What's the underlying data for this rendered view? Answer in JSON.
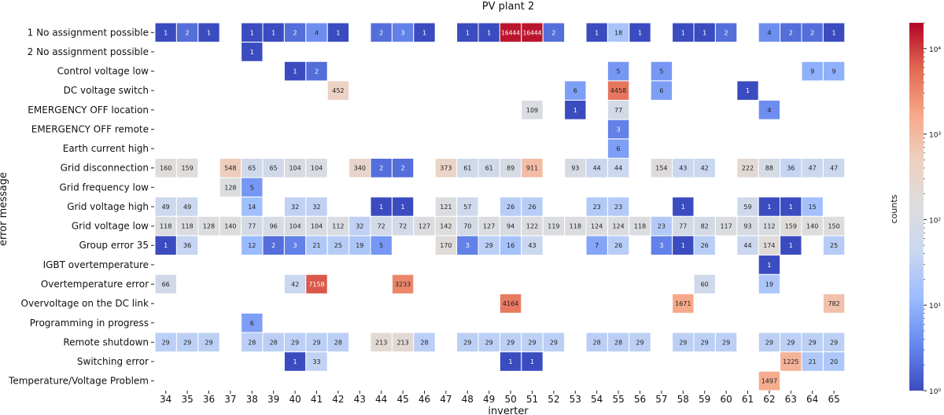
{
  "chart_data": {
    "type": "heatmap",
    "title": "PV plant 2",
    "xlabel": "inverter",
    "ylabel": "error message",
    "colorbar_label": "counts",
    "colorbar_scale": "log",
    "colorbar_range": [
      1,
      20000
    ],
    "colorbar_ticks": [
      {
        "value": 1,
        "label": "10⁰"
      },
      {
        "value": 10,
        "label": "10¹"
      },
      {
        "value": 100,
        "label": "10²"
      },
      {
        "value": 1000,
        "label": "10³"
      },
      {
        "value": 10000,
        "label": "10⁴"
      }
    ],
    "colormap": [
      "#3b4cc0",
      "#6788ee",
      "#9abbff",
      "#c9d7f0",
      "#dddddd",
      "#edd1c2",
      "#f7a889",
      "#e26952",
      "#b40426"
    ],
    "x": [
      "34",
      "35",
      "36",
      "37",
      "38",
      "39",
      "40",
      "41",
      "42",
      "43",
      "44",
      "45",
      "46",
      "47",
      "48",
      "49",
      "50",
      "51",
      "52",
      "53",
      "54",
      "55",
      "56",
      "57",
      "58",
      "59",
      "60",
      "61",
      "62",
      "63",
      "64",
      "65"
    ],
    "y": [
      "1 No assignment possible",
      "2 No assignment possible",
      "Control voltage low",
      "DC voltage switch",
      "EMERGENCY OFF location",
      "EMERGENCY OFF remote",
      "Earth current high",
      "Grid disconnection",
      "Grid frequency low",
      "Grid voltage high",
      "Grid voltage low",
      "Group error 35",
      "IGBT overtemperature",
      "Overtemperature error",
      "Overvoltage on the DC link",
      "Programming in progress",
      "Remote shutdown",
      "Switching error",
      "Temperature/Voltage Problem"
    ],
    "values": [
      [
        1,
        2,
        1,
        null,
        1,
        1,
        2,
        4,
        1,
        null,
        2,
        3,
        1,
        null,
        1,
        1,
        16444,
        16444,
        2,
        null,
        1,
        18,
        1,
        null,
        1,
        1,
        2,
        null,
        4,
        2,
        2,
        1
      ],
      [
        null,
        null,
        null,
        null,
        1,
        null,
        null,
        null,
        null,
        null,
        null,
        null,
        null,
        null,
        null,
        null,
        null,
        null,
        null,
        null,
        null,
        null,
        null,
        null,
        null,
        null,
        null,
        null,
        null,
        null,
        null,
        null
      ],
      [
        null,
        null,
        null,
        null,
        null,
        null,
        1,
        2,
        null,
        null,
        null,
        null,
        null,
        null,
        null,
        null,
        null,
        null,
        null,
        null,
        null,
        5,
        null,
        5,
        null,
        null,
        null,
        null,
        null,
        null,
        9,
        9
      ],
      [
        null,
        null,
        null,
        null,
        null,
        null,
        null,
        null,
        452,
        null,
        null,
        null,
        null,
        null,
        null,
        null,
        null,
        null,
        null,
        6,
        null,
        4458,
        null,
        6,
        null,
        null,
        null,
        1,
        null,
        null,
        null,
        null
      ],
      [
        null,
        null,
        null,
        null,
        null,
        null,
        null,
        null,
        null,
        null,
        null,
        null,
        null,
        null,
        null,
        null,
        null,
        109,
        null,
        1,
        null,
        77,
        null,
        null,
        null,
        null,
        null,
        null,
        4,
        null,
        null,
        null
      ],
      [
        null,
        null,
        null,
        null,
        null,
        null,
        null,
        null,
        null,
        null,
        null,
        null,
        null,
        null,
        null,
        null,
        null,
        null,
        null,
        null,
        null,
        3,
        null,
        null,
        null,
        null,
        null,
        null,
        null,
        null,
        null,
        null
      ],
      [
        null,
        null,
        null,
        null,
        null,
        null,
        null,
        null,
        null,
        null,
        null,
        null,
        null,
        null,
        null,
        null,
        null,
        null,
        null,
        null,
        null,
        6,
        null,
        null,
        null,
        null,
        null,
        null,
        null,
        null,
        null,
        null
      ],
      [
        160,
        159,
        null,
        548,
        65,
        65,
        104,
        104,
        null,
        340,
        2,
        2,
        null,
        373,
        61,
        61,
        89,
        911,
        null,
        93,
        44,
        44,
        null,
        154,
        43,
        42,
        null,
        222,
        88,
        36,
        47,
        47
      ],
      [
        null,
        null,
        null,
        128,
        5,
        null,
        null,
        null,
        null,
        null,
        null,
        null,
        null,
        null,
        null,
        null,
        null,
        null,
        null,
        null,
        null,
        null,
        null,
        null,
        null,
        null,
        null,
        null,
        null,
        null,
        null,
        null
      ],
      [
        49,
        49,
        null,
        null,
        14,
        null,
        32,
        32,
        null,
        null,
        1,
        1,
        null,
        121,
        57,
        null,
        26,
        26,
        null,
        null,
        23,
        23,
        null,
        null,
        1,
        null,
        null,
        59,
        1,
        1,
        15,
        null
      ],
      [
        118,
        118,
        128,
        140,
        77,
        96,
        104,
        104,
        112,
        32,
        72,
        72,
        127,
        142,
        70,
        127,
        94,
        122,
        119,
        118,
        124,
        124,
        118,
        23,
        77,
        82,
        117,
        93,
        112,
        159,
        140,
        150
      ],
      [
        1,
        36,
        null,
        null,
        12,
        2,
        3,
        21,
        25,
        19,
        5,
        null,
        null,
        170,
        3,
        29,
        16,
        43,
        null,
        null,
        7,
        26,
        null,
        3,
        1,
        26,
        null,
        44,
        174,
        1,
        null,
        25
      ],
      [
        null,
        null,
        null,
        null,
        null,
        null,
        null,
        null,
        null,
        null,
        null,
        null,
        null,
        null,
        null,
        null,
        null,
        null,
        null,
        null,
        null,
        null,
        null,
        null,
        null,
        null,
        null,
        null,
        1,
        null,
        null,
        null
      ],
      [
        66,
        null,
        null,
        null,
        null,
        null,
        42,
        7158,
        null,
        null,
        null,
        3233,
        null,
        null,
        null,
        null,
        null,
        null,
        null,
        null,
        null,
        null,
        null,
        null,
        null,
        60,
        null,
        null,
        19,
        null,
        null,
        null
      ],
      [
        null,
        null,
        null,
        null,
        null,
        null,
        null,
        null,
        null,
        null,
        null,
        null,
        null,
        null,
        null,
        null,
        4164,
        null,
        null,
        null,
        null,
        null,
        null,
        null,
        1671,
        null,
        null,
        null,
        null,
        null,
        null,
        782
      ],
      [
        null,
        null,
        null,
        null,
        6,
        null,
        null,
        null,
        null,
        null,
        null,
        null,
        null,
        null,
        null,
        null,
        null,
        null,
        null,
        null,
        null,
        null,
        null,
        null,
        null,
        null,
        null,
        null,
        null,
        null,
        null,
        null
      ],
      [
        29,
        29,
        29,
        null,
        28,
        28,
        29,
        29,
        28,
        null,
        213,
        213,
        28,
        null,
        29,
        29,
        29,
        29,
        29,
        null,
        28,
        28,
        29,
        null,
        29,
        29,
        29,
        null,
        29,
        29,
        29,
        29
      ],
      [
        null,
        null,
        null,
        null,
        null,
        null,
        1,
        33,
        null,
        null,
        null,
        null,
        null,
        null,
        null,
        null,
        1,
        1,
        null,
        null,
        null,
        null,
        null,
        null,
        null,
        null,
        null,
        null,
        null,
        1225,
        21,
        20
      ],
      [
        null,
        null,
        null,
        null,
        null,
        null,
        null,
        null,
        null,
        null,
        null,
        null,
        null,
        null,
        null,
        null,
        null,
        null,
        null,
        null,
        null,
        null,
        null,
        null,
        null,
        null,
        null,
        null,
        1497,
        null,
        null,
        null
      ]
    ]
  }
}
